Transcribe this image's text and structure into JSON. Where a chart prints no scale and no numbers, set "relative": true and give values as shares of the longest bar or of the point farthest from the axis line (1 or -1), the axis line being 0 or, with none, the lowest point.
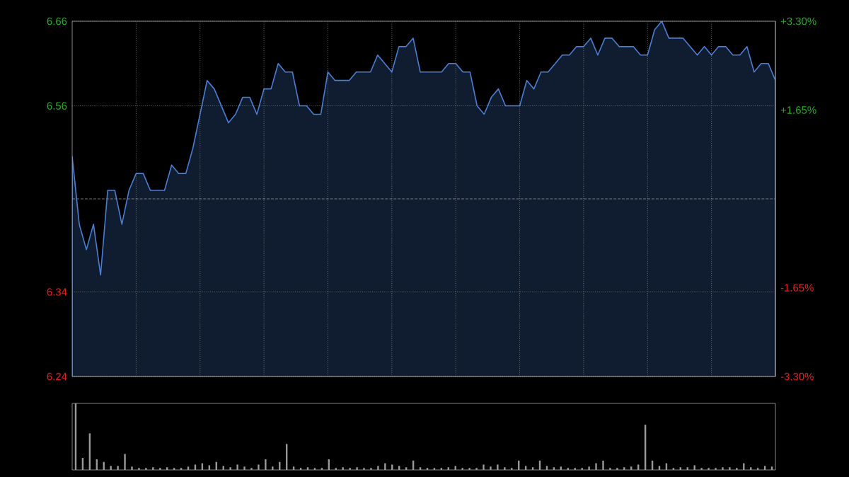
{
  "chart_data": [
    {
      "type": "area",
      "color": "#4a7fd4",
      "categories": [
        null,
        null,
        null,
        null,
        null,
        null,
        null,
        null,
        null,
        null,
        null,
        null,
        null,
        null,
        null,
        null,
        null,
        null,
        null,
        null,
        null,
        null,
        null,
        null,
        null,
        null,
        null,
        null,
        null,
        null,
        null,
        null,
        null,
        null,
        null,
        null,
        null,
        null,
        null,
        null,
        null,
        null,
        null,
        null,
        null,
        null,
        null,
        null,
        null,
        null,
        null,
        null,
        null,
        null,
        null,
        null,
        null,
        null,
        null,
        null,
        null,
        null,
        null,
        null,
        null,
        null,
        null,
        null,
        null,
        null,
        null,
        null,
        null,
        null,
        null,
        null,
        null,
        null,
        null,
        null,
        null,
        null,
        null,
        null,
        null,
        null,
        null,
        null,
        null,
        null,
        null,
        null,
        null,
        null,
        null,
        null,
        null,
        null,
        null,
        null
      ],
      "values": [
        6.5,
        6.42,
        6.39,
        6.42,
        6.36,
        6.46,
        6.46,
        6.42,
        6.46,
        6.48,
        6.48,
        6.46,
        6.46,
        6.46,
        6.49,
        6.48,
        6.48,
        6.51,
        6.55,
        6.59,
        6.58,
        6.56,
        6.54,
        6.55,
        6.57,
        6.57,
        6.55,
        6.58,
        6.58,
        6.61,
        6.6,
        6.6,
        6.56,
        6.56,
        6.55,
        6.55,
        6.6,
        6.59,
        6.59,
        6.59,
        6.6,
        6.6,
        6.6,
        6.62,
        6.61,
        6.6,
        6.63,
        6.63,
        6.64,
        6.6,
        6.6,
        6.6,
        6.6,
        6.61,
        6.61,
        6.6,
        6.6,
        6.56,
        6.55,
        6.57,
        6.58,
        6.56,
        6.56,
        6.56,
        6.59,
        6.58,
        6.6,
        6.6,
        6.61,
        6.62,
        6.62,
        6.63,
        6.63,
        6.64,
        6.62,
        6.64,
        6.64,
        6.63,
        6.63,
        6.63,
        6.62,
        6.62,
        6.65,
        6.66,
        6.64,
        6.64,
        6.64,
        6.63,
        6.62,
        6.63,
        6.62,
        6.63,
        6.63,
        6.62,
        6.62,
        6.63,
        6.6,
        6.61,
        6.61,
        6.59
      ],
      "ylim": [
        6.24,
        6.66
      ],
      "yticks": [
        6.66,
        6.56,
        6.34,
        6.24
      ],
      "y2lim": [
        -3.3,
        3.3
      ],
      "y2ticks": [
        {
          "value": 3.3,
          "label": "+3.30%"
        },
        {
          "value": 1.65,
          "label": "+1.65%"
        },
        {
          "value": -1.65,
          "label": "-1.65%"
        },
        {
          "value": -3.3,
          "label": "-3.30%"
        }
      ],
      "ref_lines": [
        {
          "axis": "y",
          "value": 6.45
        }
      ],
      "grid": true
    },
    {
      "type": "bar",
      "color": "#9a9a9a",
      "relative": true,
      "categories": [
        null,
        null,
        null,
        null,
        null,
        null,
        null,
        null,
        null,
        null,
        null,
        null,
        null,
        null,
        null,
        null,
        null,
        null,
        null,
        null,
        null,
        null,
        null,
        null,
        null,
        null,
        null,
        null,
        null,
        null,
        null,
        null,
        null,
        null,
        null,
        null,
        null,
        null,
        null,
        null,
        null,
        null,
        null,
        null,
        null,
        null,
        null,
        null,
        null,
        null,
        null,
        null,
        null,
        null,
        null,
        null,
        null,
        null,
        null,
        null,
        null,
        null,
        null,
        null,
        null,
        null,
        null,
        null,
        null,
        null,
        null,
        null,
        null,
        null,
        null,
        null,
        null,
        null,
        null,
        null,
        null,
        null,
        null,
        null,
        null,
        null,
        null,
        null,
        null,
        null,
        null,
        null,
        null,
        null,
        null,
        null,
        null,
        null,
        null,
        null
      ],
      "values": [
        1.0,
        0.18,
        0.55,
        0.16,
        0.12,
        0.06,
        0.06,
        0.24,
        0.05,
        0.03,
        0.03,
        0.04,
        0.03,
        0.04,
        0.03,
        0.03,
        0.05,
        0.08,
        0.1,
        0.07,
        0.12,
        0.06,
        0.04,
        0.08,
        0.05,
        0.03,
        0.08,
        0.16,
        0.05,
        0.12,
        0.39,
        0.05,
        0.03,
        0.04,
        0.03,
        0.03,
        0.16,
        0.03,
        0.04,
        0.03,
        0.04,
        0.03,
        0.03,
        0.06,
        0.1,
        0.08,
        0.06,
        0.04,
        0.14,
        0.04,
        0.03,
        0.03,
        0.03,
        0.04,
        0.06,
        0.03,
        0.03,
        0.03,
        0.08,
        0.05,
        0.08,
        0.04,
        0.03,
        0.14,
        0.06,
        0.04,
        0.14,
        0.06,
        0.04,
        0.05,
        0.03,
        0.03,
        0.03,
        0.05,
        0.1,
        0.14,
        0.03,
        0.03,
        0.04,
        0.05,
        0.08,
        0.68,
        0.14,
        0.06,
        0.1,
        0.03,
        0.04,
        0.04,
        0.07,
        0.03,
        0.03,
        0.03,
        0.04,
        0.04,
        0.03,
        0.1,
        0.04,
        0.03,
        0.06,
        0.05
      ]
    }
  ]
}
